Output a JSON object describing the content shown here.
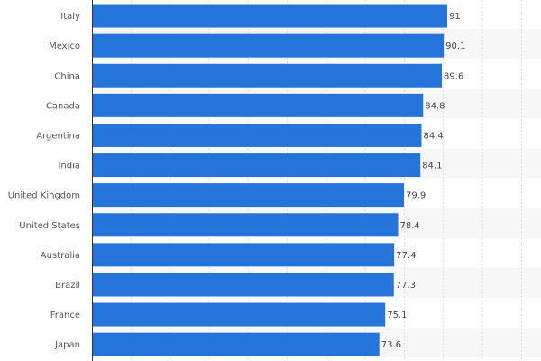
{
  "chart_data": {
    "type": "bar",
    "orientation": "horizontal",
    "categories": [
      "Italy",
      "Mexico",
      "China",
      "Canada",
      "Argentina",
      "India",
      "United Kingdom",
      "United States",
      "Australia",
      "Brazil",
      "France",
      "Japan"
    ],
    "values": [
      91,
      90.1,
      89.6,
      84.8,
      84.4,
      84.1,
      79.9,
      78.4,
      77.4,
      77.3,
      75.1,
      73.6
    ],
    "value_labels": [
      "91",
      "90.1",
      "89.6",
      "84.8",
      "84.4",
      "84.1",
      "79.9",
      "78.4",
      "77.4",
      "77.3",
      "75.1",
      "73.6"
    ],
    "title": "",
    "xlabel": "",
    "ylabel": "",
    "xlim": [
      0,
      115
    ],
    "grid": true,
    "bar_color": "#2574d9",
    "stripe_color": "#f7f7f7"
  }
}
